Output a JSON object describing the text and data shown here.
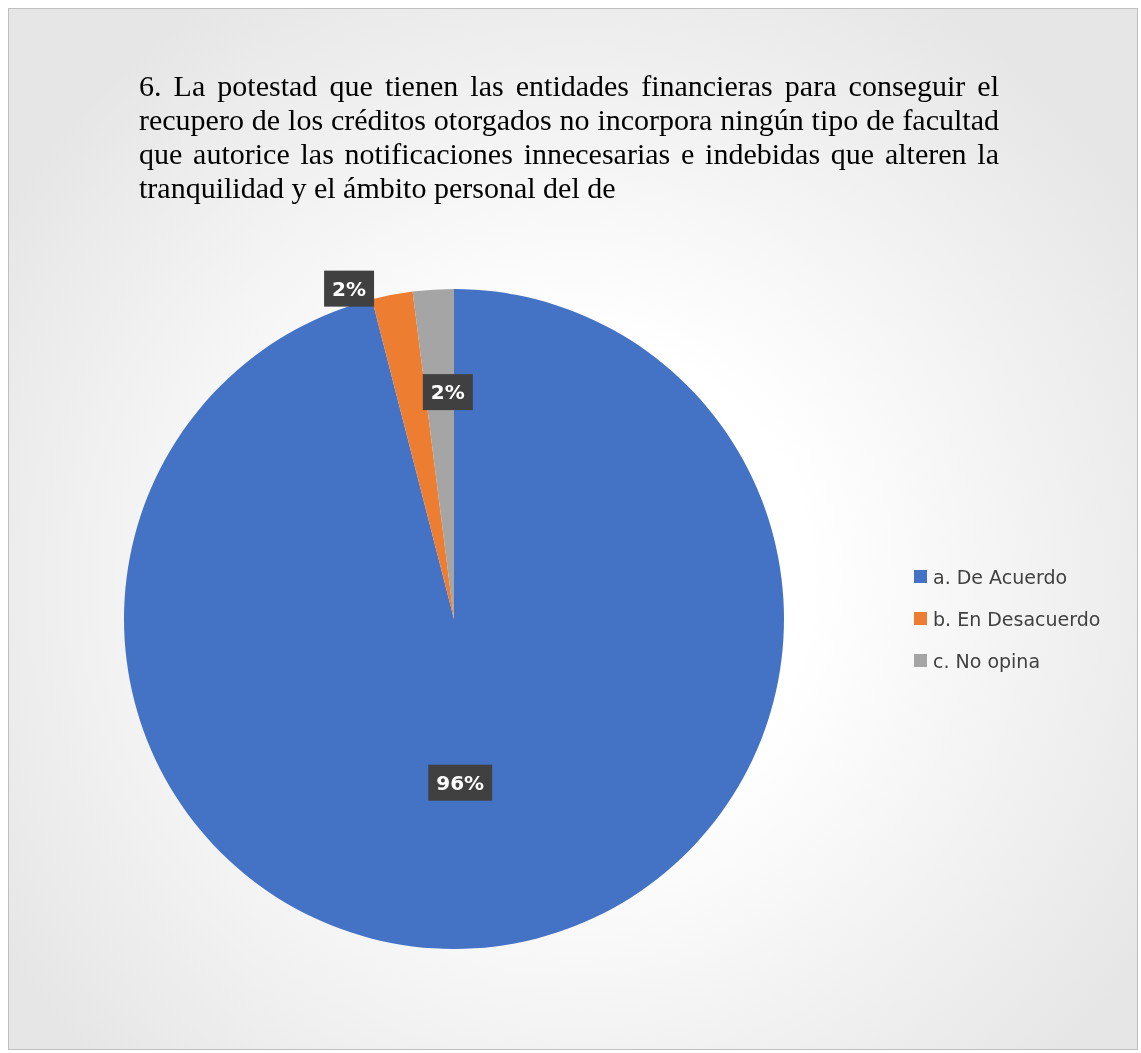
{
  "chart_data": {
    "type": "pie",
    "title": " 6. La potestad que tienen las entidades financieras para conseguir el recupero de los créditos otorgados no incorpora ningún tipo de facultad que autorice las notificaciones innecesarias e indebidas que alteren la tranquilidad y el ámbito personal del de",
    "categories": [
      "a. De Acuerdo",
      "b. En Desacuerdo",
      "c. No opina"
    ],
    "values": [
      96,
      2,
      2
    ],
    "colors": [
      "#4472c4",
      "#ed7d31",
      "#a5a5a5"
    ],
    "value_labels": [
      "96%",
      "2%",
      "2%"
    ],
    "legend": "right"
  }
}
